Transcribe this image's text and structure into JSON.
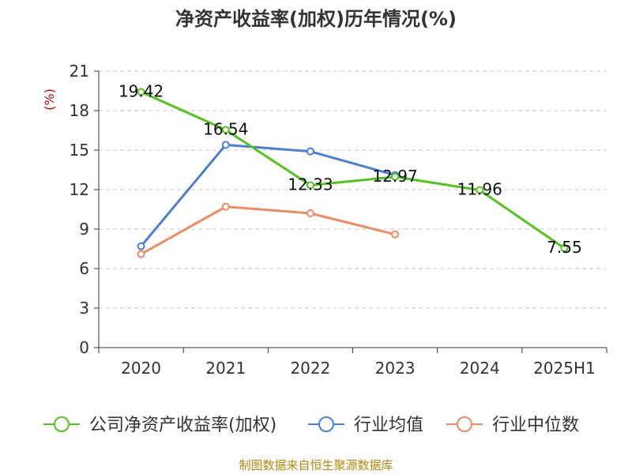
{
  "chart_data": {
    "type": "line",
    "title": "净资产收益率(加权)历年情况(%)",
    "ylabel": "(%)",
    "xlabel": "",
    "categories": [
      "2020",
      "2021",
      "2022",
      "2023",
      "2024",
      "2025H1"
    ],
    "ylim": [
      0,
      21
    ],
    "yticks": [
      0,
      3,
      6,
      9,
      12,
      15,
      18,
      21
    ],
    "grid": true,
    "legend_position": "bottom",
    "series": [
      {
        "name": "公司净资产收益率(加权)",
        "color": "#52c41a",
        "values": [
          19.42,
          16.54,
          12.33,
          12.97,
          11.96,
          7.55
        ],
        "labels": [
          "19.42",
          "16.54",
          "12.33",
          "12.97",
          "11.96",
          "7.55"
        ]
      },
      {
        "name": "行业均值",
        "color": "#4a7fd8",
        "values": [
          7.7,
          15.4,
          14.9,
          13.1,
          null,
          null
        ]
      },
      {
        "name": "行业中位数",
        "color": "#f4895f",
        "values": [
          7.1,
          10.7,
          10.2,
          8.6,
          null,
          null
        ]
      }
    ]
  },
  "source": "制图数据来自恒生聚源数据库"
}
